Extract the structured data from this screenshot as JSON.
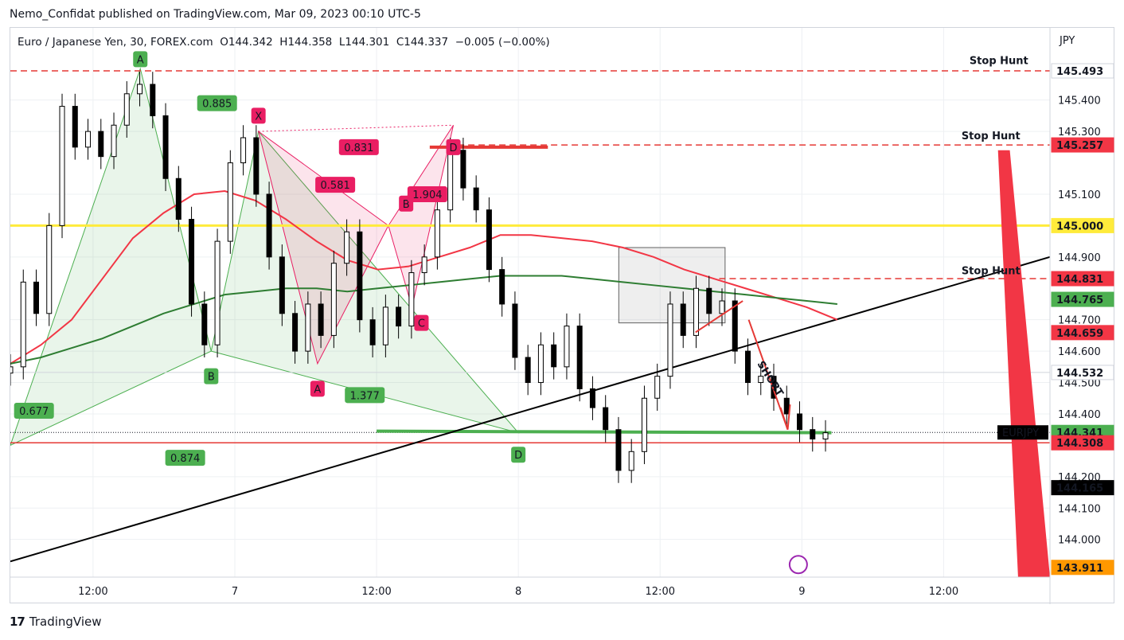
{
  "header": {
    "publisher_line": "Nemo_Confidat published on TradingView.com, Mar 09, 2023 00:10 UTC-5"
  },
  "legend": {
    "symbol": "Euro / Japanese Yen, 30, FOREX.com",
    "open": "O144.342",
    "high": "H144.358",
    "low": "L144.301",
    "close": "C144.337",
    "change": "−0.005 (−0.00%)"
  },
  "footer": {
    "brand": "TradingView"
  },
  "colors": {
    "up": "#ffffff",
    "down": "#000000",
    "ema_fast": "#f23645",
    "ema_slow": "#2e7d32",
    "stop_hunt": "#e53935",
    "level_yellow": "#ffeb3b",
    "harmonic_green": "#4caf50",
    "harmonic_pink": "#e91e63"
  },
  "chart_data": {
    "type": "candlestick",
    "symbol": "EURJPY",
    "interval": "30",
    "y_unit": "JPY",
    "ylim": [
      143.88,
      145.63
    ],
    "y_ticks": [
      "145.400",
      "145.300",
      "145.100",
      "144.900",
      "144.700",
      "144.600",
      "144.500",
      "144.400",
      "144.200",
      "144.100",
      "144.000"
    ],
    "y_tick_values": [
      145.4,
      145.3,
      145.1,
      144.9,
      144.7,
      144.6,
      144.5,
      144.4,
      144.2,
      144.1,
      144.0
    ],
    "x_ticks": [
      "12:00",
      "7",
      "12:00",
      "8",
      "12:00",
      "9",
      "12:00"
    ],
    "x_tick_index": [
      12,
      24,
      36,
      48,
      60,
      72,
      84
    ],
    "x_range": [
      5,
      93
    ],
    "closes": [
      144.55,
      144.82,
      144.72,
      145.0,
      145.38,
      145.25,
      145.3,
      145.22,
      145.32,
      145.42,
      145.45,
      145.35,
      145.15,
      145.02,
      144.75,
      144.62,
      144.95,
      145.2,
      145.28,
      145.1,
      144.9,
      144.72,
      144.6,
      144.75,
      144.65,
      144.88,
      144.98,
      144.7,
      144.62,
      144.74,
      144.68,
      144.85,
      144.9,
      145.05,
      145.24,
      145.12,
      145.05,
      144.86,
      144.75,
      144.58,
      144.5,
      144.62,
      144.55,
      144.68,
      144.48,
      144.42,
      144.35,
      144.22,
      144.28,
      144.45,
      144.52,
      144.75,
      144.65,
      144.8,
      144.72,
      144.76,
      144.6,
      144.5,
      144.52,
      144.45,
      144.4,
      144.35,
      144.32,
      144.34
    ],
    "series": [
      {
        "name": "EMA fast",
        "values": [
          144.56,
          144.62,
          144.7,
          144.83,
          144.96,
          145.04,
          145.1,
          145.11,
          145.08,
          145.02,
          144.95,
          144.89,
          144.86,
          144.87,
          144.9,
          144.93,
          144.97,
          144.97,
          144.96,
          144.95,
          144.93,
          144.9,
          144.86,
          144.83,
          144.8,
          144.77,
          144.74,
          144.7
        ]
      },
      {
        "name": "EMA slow",
        "values": [
          144.56,
          144.58,
          144.61,
          144.64,
          144.68,
          144.72,
          144.75,
          144.78,
          144.79,
          144.8,
          144.8,
          144.79,
          144.8,
          144.81,
          144.82,
          144.83,
          144.84,
          144.84,
          144.84,
          144.83,
          144.82,
          144.81,
          144.8,
          144.79,
          144.78,
          144.77,
          144.76,
          144.75
        ]
      }
    ],
    "price_labels": [
      {
        "text": "145.493",
        "value": 145.493,
        "bg": "#ffffff",
        "fg": "#131722"
      },
      {
        "text": "145.257",
        "value": 145.257,
        "bg": "#f23645",
        "fg": "#ffffff"
      },
      {
        "text": "145.000",
        "value": 145.0,
        "bg": "#ffeb3b",
        "fg": "#131722"
      },
      {
        "text": "144.831",
        "value": 144.831,
        "bg": "#f23645",
        "fg": "#ffffff"
      },
      {
        "text": "144.765",
        "value": 144.765,
        "bg": "#4caf50",
        "fg": "#ffffff"
      },
      {
        "text": "144.659",
        "value": 144.659,
        "bg": "#f23645",
        "fg": "#ffffff"
      },
      {
        "text": "144.532",
        "value": 144.532,
        "bg": "#ffffff",
        "fg": "#131722"
      },
      {
        "text": "144.341",
        "value": 144.341,
        "bg": "#4caf50",
        "fg": "#ffffff"
      },
      {
        "text": "144.308",
        "value": 144.308,
        "bg": "#f23645",
        "fg": "#ffffff"
      },
      {
        "text": "144.165",
        "value": 144.165,
        "bg": "#000000",
        "fg": "#ffffff"
      },
      {
        "text": "143.911",
        "value": 143.911,
        "bg": "#ff9800",
        "fg": "#ffffff"
      }
    ],
    "symbol_tag": "EURJPY",
    "axis_unit_label": "JPY",
    "annotations": {
      "stop_hunt": [
        "Stop Hunt",
        "Stop Hunt",
        "Stop Hunt"
      ],
      "short": "SHORT",
      "green_pattern_points": [
        "A",
        "B",
        "D"
      ],
      "green_ratios": [
        "0.885",
        "0.677",
        "1.377",
        "0.874"
      ],
      "pink_pattern_points": [
        "X",
        "A",
        "B",
        "C",
        "D"
      ],
      "pink_ratios": [
        "0.831",
        "0.581",
        "1.904"
      ]
    },
    "horizontal_levels": [
      145.493,
      145.257,
      145.0,
      144.831,
      144.532,
      144.308
    ]
  }
}
